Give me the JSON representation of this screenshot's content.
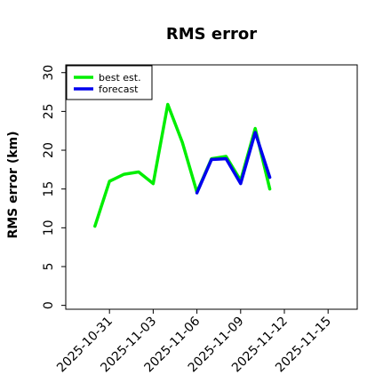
{
  "chart_data": {
    "type": "line",
    "title": "RMS error",
    "xlabel": "",
    "ylabel": "RMS error (km)",
    "ylim": [
      -0.5,
      31
    ],
    "yticks": [
      0,
      5,
      10,
      15,
      20,
      25,
      30
    ],
    "xlim": [
      "2025-10-28",
      "2025-11-17"
    ],
    "xticks": [
      "2025-10-31",
      "2025-11-03",
      "2025-11-06",
      "2025-11-09",
      "2025-11-12",
      "2025-11-15"
    ],
    "highlighted_xtick": "2025-11-06",
    "highlight_color": "#2e8b2e",
    "grid": false,
    "legend_position": "top-left",
    "series": [
      {
        "name": "best est.",
        "color": "#00ee00",
        "x": [
          "2025-10-30",
          "2025-10-31",
          "2025-11-01",
          "2025-11-02",
          "2025-11-03",
          "2025-11-04",
          "2025-11-05",
          "2025-11-06",
          "2025-11-07",
          "2025-11-08",
          "2025-11-09",
          "2025-11-10",
          "2025-11-11"
        ],
        "values": [
          10.2,
          16.0,
          16.9,
          17.2,
          15.7,
          25.9,
          21.0,
          14.6,
          18.9,
          19.2,
          16.1,
          22.8,
          15.0
        ]
      },
      {
        "name": "forecast",
        "color": "#0000ee",
        "x": [
          "2025-11-06",
          "2025-11-07",
          "2025-11-08",
          "2025-11-09",
          "2025-11-10",
          "2025-11-11"
        ],
        "values": [
          14.5,
          18.8,
          18.9,
          15.7,
          22.3,
          16.5
        ]
      }
    ]
  }
}
